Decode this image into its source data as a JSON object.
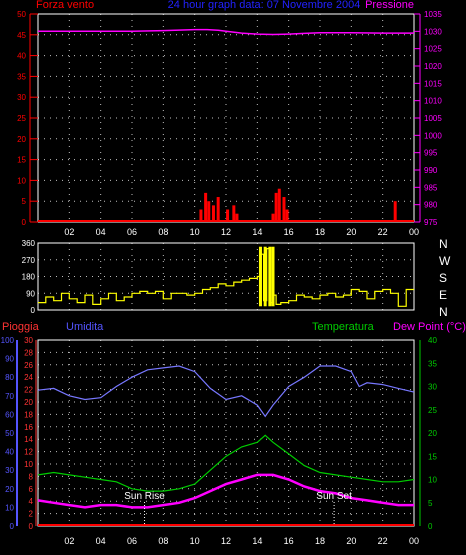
{
  "colors": {
    "bg": "#000000",
    "frame": "#ffffff",
    "grid": "#ffffff",
    "wind": "#ff0000",
    "pressure": "#ff00ff",
    "title": "#2222ff",
    "direction": "#ffff00",
    "rain": "#ff0000",
    "humidity": "#7777ff",
    "temperature": "#00cc00",
    "dewpoint": "#ff00ff",
    "rain_axis": "#ff3333",
    "humidity_axis": "#5555ff",
    "temperature_axis": "#00cc00",
    "sun": "#ffffff"
  },
  "header": {
    "left": "Forza vento",
    "center": "24 hour graph data: 07 Novembre 2004",
    "right": "Pressione"
  },
  "lower_header": {
    "rain": "Pioggia",
    "humidity": "Umidita",
    "temperature": "Temperatura",
    "dewpoint": "Dew Point (°C)"
  },
  "sun": {
    "rise_label": "Sun Rise",
    "rise_hour": 6.8,
    "set_label": "Sun Set",
    "set_hour": 18.9
  },
  "compass": [
    "N",
    "W",
    "S",
    "E",
    "N"
  ],
  "chart_data": [
    {
      "type": "line",
      "name": "wind-pressure",
      "x_ticks": [
        "02",
        "04",
        "06",
        "08",
        "10",
        "12",
        "14",
        "16",
        "18",
        "20",
        "22",
        "00"
      ],
      "x_range_hours": [
        0,
        24
      ],
      "left_axis": {
        "ticks": [
          "0",
          "5",
          "10",
          "15",
          "20",
          "25",
          "30",
          "35",
          "40",
          "45",
          "50"
        ],
        "range": [
          0,
          50
        ]
      },
      "right_axis": {
        "ticks": [
          "975",
          "980",
          "985",
          "990",
          "995",
          "1000",
          "1005",
          "1010",
          "1015",
          "1020",
          "1025",
          "1030",
          "1035"
        ],
        "range": [
          975,
          1035
        ]
      },
      "pressure": {
        "x": [
          0,
          2,
          4,
          6,
          8,
          10,
          10.8,
          11.5,
          12,
          13,
          14,
          15,
          16,
          17,
          18,
          20,
          22,
          24
        ],
        "y": [
          1030,
          1030,
          1030,
          1030,
          1030.2,
          1030.5,
          1030.5,
          1030.3,
          1030,
          1029.5,
          1029.2,
          1029.1,
          1029.2,
          1029.4,
          1029.6,
          1029.6,
          1029.5,
          1029.5
        ]
      },
      "wind": {
        "x": [
          10.4,
          10.7,
          10.9,
          11.2,
          11.5,
          12.1,
          12.5,
          12.7,
          15.0,
          15.2,
          15.4,
          15.7,
          15.9,
          22.8
        ],
        "y": [
          3,
          7,
          5,
          4,
          6,
          3,
          4,
          2,
          2,
          7,
          8,
          6,
          3,
          5
        ]
      }
    },
    {
      "type": "line",
      "name": "wind-direction",
      "x_range_hours": [
        0,
        24
      ],
      "left_axis": {
        "ticks": [
          "0",
          "90",
          "180",
          "270",
          "360"
        ],
        "range": [
          0,
          360
        ]
      },
      "direction": {
        "x": [
          0,
          0.5,
          1,
          1.5,
          2,
          2.5,
          3,
          3.5,
          4,
          4.5,
          5,
          5.5,
          6,
          6.5,
          7,
          7.5,
          8,
          8.5,
          9,
          9.5,
          10,
          10.5,
          11,
          11.5,
          12,
          12.5,
          13,
          13.5,
          14,
          14.2,
          14.4,
          14.6,
          14.8,
          15,
          15.2,
          15.5,
          16,
          16.5,
          17,
          17.5,
          18,
          18.5,
          19,
          19.5,
          20,
          20.5,
          21,
          21.5,
          22,
          22.5,
          23,
          23.5,
          24
        ],
        "y": [
          40,
          70,
          50,
          90,
          60,
          40,
          80,
          30,
          60,
          90,
          50,
          70,
          90,
          100,
          90,
          100,
          60,
          90,
          90,
          80,
          90,
          110,
          120,
          140,
          130,
          150,
          160,
          170,
          180,
          300,
          50,
          330,
          40,
          80,
          30,
          40,
          50,
          80,
          70,
          60,
          80,
          90,
          70,
          80,
          110,
          100,
          60,
          100,
          110,
          90,
          20,
          110,
          110
        ]
      }
    },
    {
      "type": "line",
      "name": "rain-humidity-temperature-dewpoint",
      "x_ticks": [
        "02",
        "04",
        "06",
        "08",
        "10",
        "12",
        "14",
        "16",
        "18",
        "20",
        "22",
        "00"
      ],
      "x_range_hours": [
        0,
        24
      ],
      "rain_axis": {
        "ticks": [
          "0",
          "2",
          "4",
          "6",
          "8",
          "10",
          "12",
          "14",
          "16",
          "18",
          "20",
          "22",
          "24",
          "26",
          "28",
          "30"
        ],
        "range": [
          0,
          30
        ]
      },
      "humidity_axis": {
        "ticks": [
          "0",
          "10",
          "20",
          "30",
          "40",
          "50",
          "60",
          "70",
          "80",
          "90",
          "100"
        ],
        "range": [
          0,
          100
        ]
      },
      "temperature_axis": {
        "ticks": [
          "0",
          "5",
          "10",
          "15",
          "20",
          "25",
          "30",
          "35",
          "40"
        ],
        "range": [
          0,
          40
        ]
      },
      "humidity": {
        "x": [
          0,
          1,
          2,
          3,
          4,
          5,
          6,
          7,
          8,
          9,
          10,
          11,
          12,
          13,
          14,
          14.5,
          15,
          16,
          17,
          18,
          19,
          20,
          20.5,
          21,
          22,
          23,
          24
        ],
        "y": [
          73,
          74,
          70,
          68,
          69,
          75,
          80,
          84,
          85,
          86,
          83,
          74,
          68,
          70,
          65,
          59,
          65,
          75,
          80,
          86,
          86,
          83,
          75,
          77,
          76,
          74,
          72
        ]
      },
      "temperature": {
        "x": [
          0,
          1,
          2,
          3,
          4,
          5,
          6,
          7,
          8,
          9,
          10,
          11,
          12,
          13,
          14,
          14.5,
          15,
          16,
          17,
          18,
          19,
          20,
          21,
          22,
          23,
          24
        ],
        "y": [
          11,
          11.5,
          11,
          10.5,
          10,
          9.5,
          8,
          7.5,
          7.5,
          8,
          9,
          12,
          15,
          17,
          18,
          19.5,
          18,
          15.5,
          13,
          11.5,
          11,
          10.5,
          10,
          9.5,
          9.5,
          10
        ]
      },
      "dewpoint": {
        "x": [
          0,
          1,
          2,
          3,
          4,
          5,
          6,
          7,
          8,
          9,
          10,
          11,
          12,
          13,
          14,
          15,
          16,
          17,
          18,
          19,
          20,
          21,
          22,
          23,
          24
        ],
        "y": [
          5.5,
          5,
          4.5,
          4,
          4.5,
          4.5,
          4,
          4,
          4.5,
          5,
          6,
          7.5,
          9,
          10,
          11,
          11,
          10,
          8.5,
          7.5,
          7,
          6,
          5.5,
          5,
          4.5,
          4.5
        ]
      },
      "rain": {
        "x": [
          0,
          24
        ],
        "y": [
          0,
          0
        ]
      }
    }
  ]
}
